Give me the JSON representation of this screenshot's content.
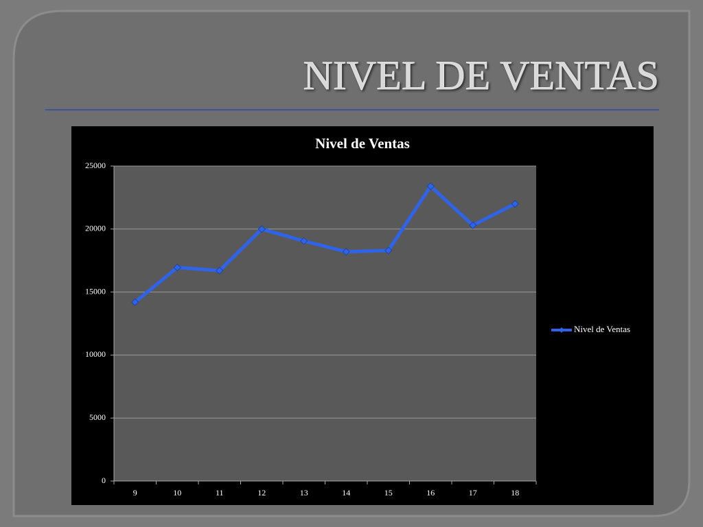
{
  "slide": {
    "title": "NIVEL DE VENTAS"
  },
  "chart_data": {
    "type": "line",
    "title": "Nivel de Ventas",
    "categories": [
      "9",
      "10",
      "11",
      "12",
      "13",
      "14",
      "15",
      "16",
      "17",
      "18"
    ],
    "series": [
      {
        "name": "Nivel de Ventas",
        "color": "#2f63e8",
        "values": [
          14200,
          16950,
          16700,
          20000,
          19050,
          18200,
          18300,
          23400,
          20300,
          22000
        ]
      }
    ],
    "ylim": [
      0,
      25000
    ],
    "yticks": [
      0,
      5000,
      10000,
      15000,
      20000,
      25000
    ],
    "grid": true,
    "legend": "right"
  }
}
